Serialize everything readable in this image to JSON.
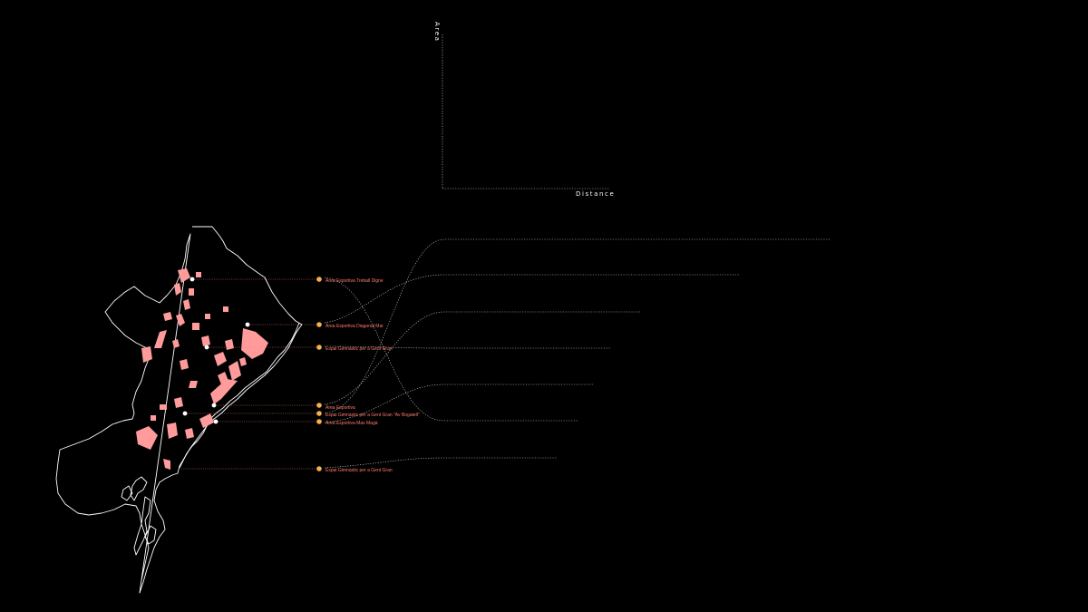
{
  "axes": {
    "y_label": "Area",
    "x_label": "Distance"
  },
  "colors": {
    "background": "#000000",
    "marker": "#f7b04a",
    "label": "#ff7b6b",
    "built_area": "#ff9b9b",
    "outline": "#ffffff",
    "dotted": "#d8d8d8"
  },
  "sites": [
    {
      "label": "Àrea Esportiva Treball Digne"
    },
    {
      "label": "Àrea Esportiva Diagonal Mar"
    },
    {
      "label": "Espai Gimnàstic per a Gent Gran"
    },
    {
      "label": "Àrea Esportiva"
    },
    {
      "label": "Espai Gimnàstic per a Gent Gran \"Av Bogatell\""
    },
    {
      "label": "Àrea Esportiva Mas Magà"
    },
    {
      "label": "Espai Gimnàstic per a Gent Gran"
    }
  ]
}
